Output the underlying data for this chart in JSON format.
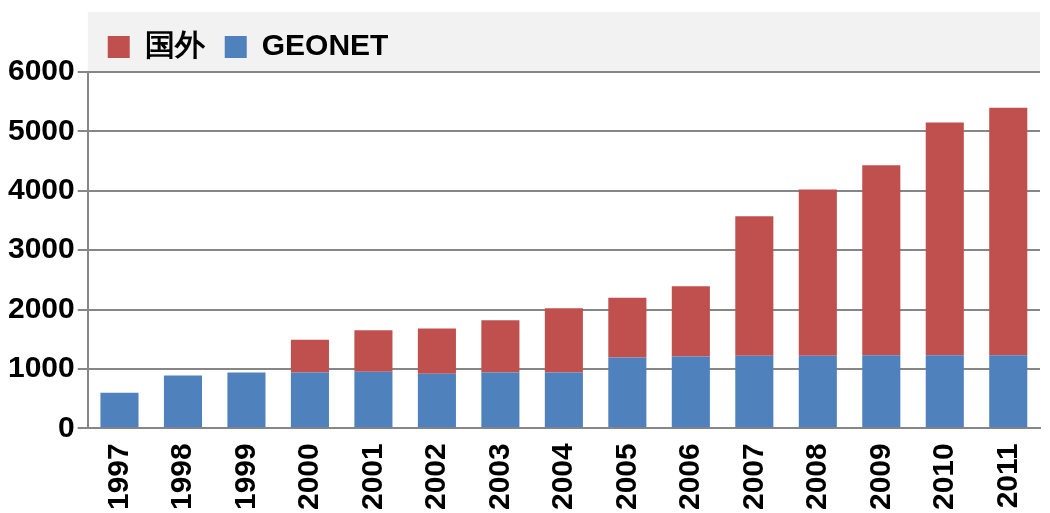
{
  "chart_data": {
    "type": "bar",
    "stacked": true,
    "categories": [
      "1997",
      "1998",
      "1999",
      "2000",
      "2001",
      "2002",
      "2003",
      "2004",
      "2005",
      "2006",
      "2007",
      "2008",
      "2009",
      "2010",
      "2011"
    ],
    "series": [
      {
        "name": "GEONET",
        "color": "#4f81bd",
        "values": [
          600,
          890,
          940,
          940,
          950,
          920,
          940,
          940,
          1190,
          1210,
          1220,
          1220,
          1230,
          1230,
          1230
        ]
      },
      {
        "name": "国外",
        "color": "#c0504d",
        "values": [
          null,
          null,
          null,
          550,
          700,
          760,
          880,
          1080,
          1010,
          1180,
          2350,
          2800,
          3200,
          3920,
          4170
        ]
      }
    ],
    "ylim": [
      0,
      6000
    ],
    "yticks": [
      0,
      1000,
      2000,
      3000,
      4000,
      5000,
      6000
    ],
    "grid": "y",
    "legend": "top left"
  }
}
